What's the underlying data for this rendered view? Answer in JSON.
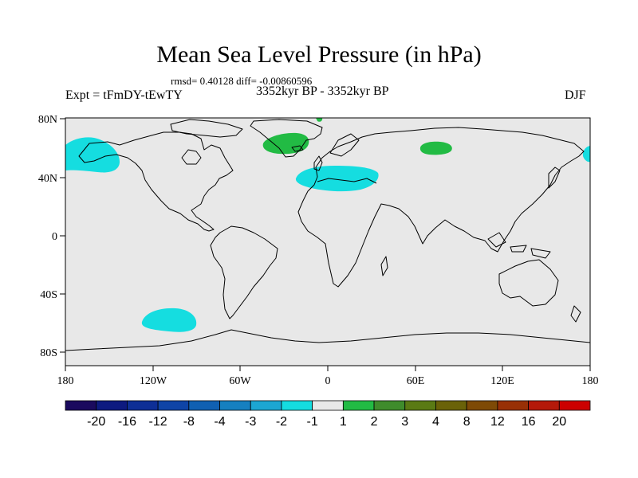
{
  "title": "Mean Sea Level Pressure (in hPa)",
  "stats": "rmsd= 0.40128 diff= -0.00860596",
  "experiment": "Expt = tFmDY-tEwTY",
  "period": "3352kyr BP - 3352kyr BP",
  "season": "DJF",
  "x_ticks": [
    "180",
    "120W",
    "60W",
    "0",
    "60E",
    "120E",
    "180"
  ],
  "y_ticks": [
    "80N",
    "40N",
    "0",
    "40S",
    "80S"
  ],
  "colorbar": {
    "labels": [
      "-20",
      "-16",
      "-12",
      "-8",
      "-4",
      "-3",
      "-2",
      "-1",
      "1",
      "2",
      "3",
      "4",
      "8",
      "12",
      "16",
      "20"
    ],
    "colors": [
      "#1a0a5e",
      "#0d1a80",
      "#0e2f96",
      "#0f44a6",
      "#1060b2",
      "#1680c0",
      "#1ca6d2",
      "#15dde0",
      "#e8e8e8",
      "#22bb44",
      "#3f8c2c",
      "#5a7a14",
      "#6a6208",
      "#7e4a06",
      "#983006",
      "#b4190a",
      "#cc0000"
    ]
  },
  "colors": {
    "ocean": "#e8e8e8",
    "negative_anomaly": "#15dde0",
    "positive_anomaly": "#22bb44",
    "coastline": "#000000"
  }
}
